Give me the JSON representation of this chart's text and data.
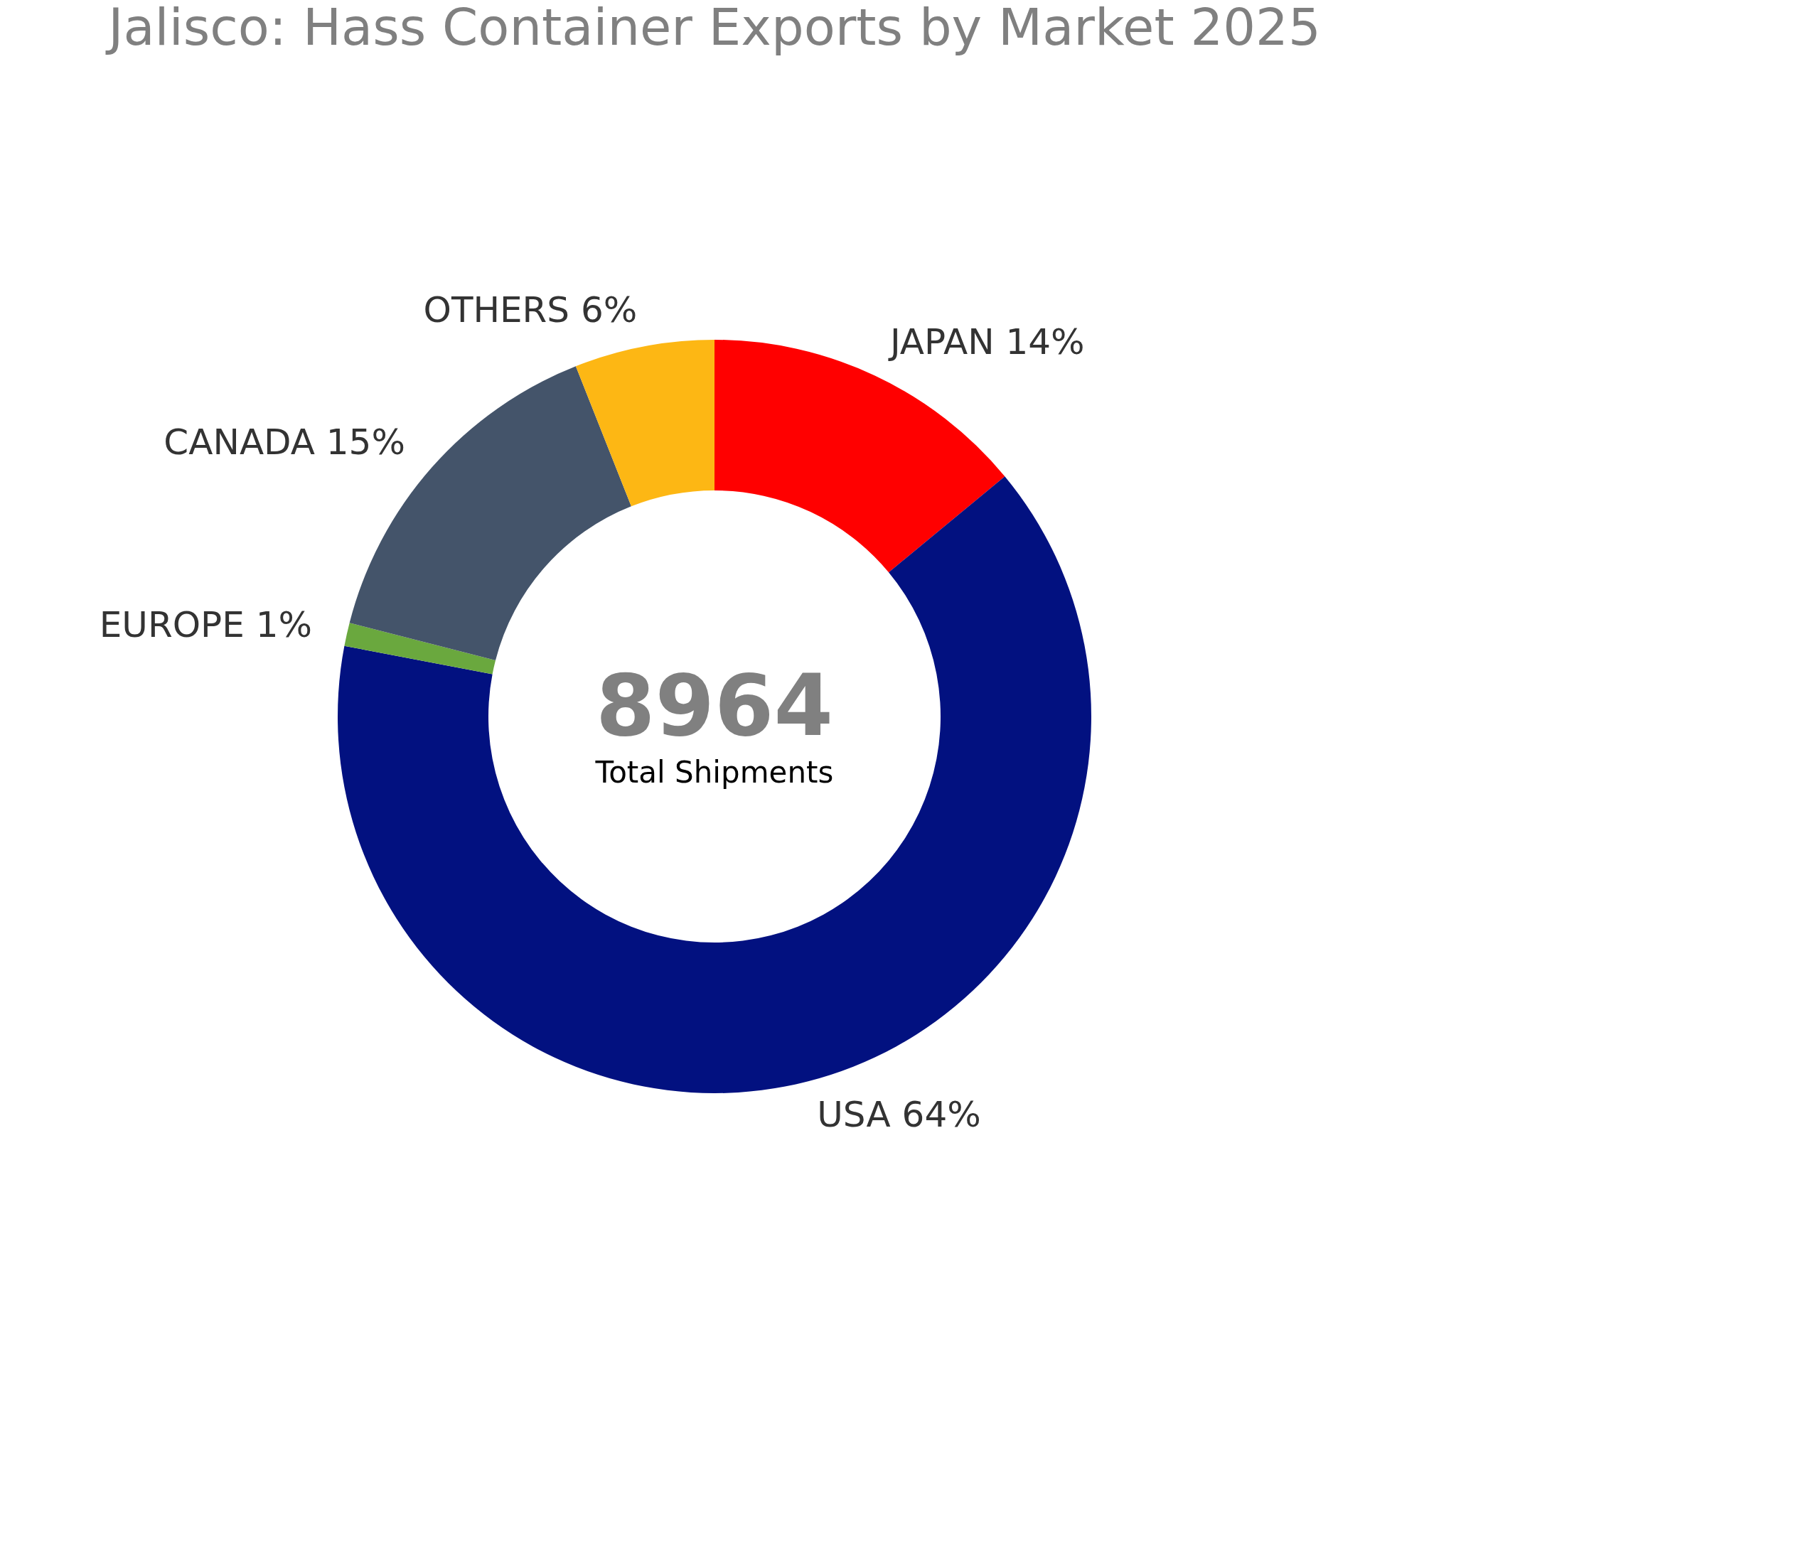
{
  "chart_data": {
    "type": "donut",
    "title": "Jalisco: Hass Container Exports by Market 2025",
    "categories": [
      "JAPAN",
      "USA",
      "EUROPE",
      "CANADA",
      "OTHERS"
    ],
    "values": [
      14,
      64,
      1,
      15,
      6
    ],
    "value_labels": [
      "14%",
      "64%",
      "1%",
      "15%",
      "6%"
    ],
    "colors": [
      "#ff0000",
      "#021180",
      "#6aa83e",
      "#44546a",
      "#fdb714"
    ],
    "annotations": [
      "8964",
      "Total Shipments"
    ]
  }
}
